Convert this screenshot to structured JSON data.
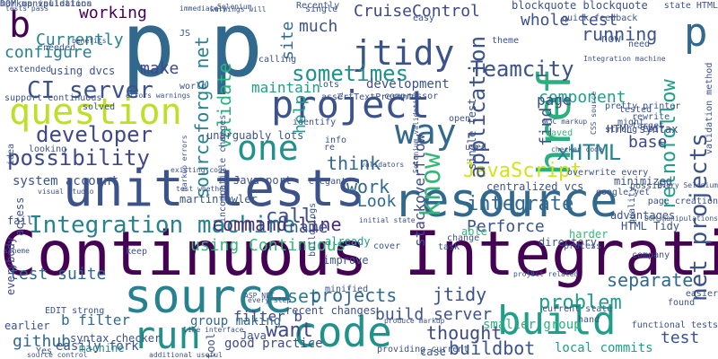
{
  "wordcloud": {
    "words": [
      {
        "text": "Continuous Integration",
        "color": "#440154"
      },
      {
        "text": "unit tests",
        "color": "#3b528b"
      },
      {
        "text": "p",
        "color": "#31688e"
      },
      {
        "text": "p",
        "color": "#31688e"
      },
      {
        "text": "resource",
        "color": "#31688e"
      },
      {
        "text": "source",
        "color": "#26828e"
      },
      {
        "text": "code",
        "color": "#21918c"
      },
      {
        "text": "project",
        "color": "#3b528b"
      },
      {
        "text": "way",
        "color": "#31688e"
      },
      {
        "text": "run",
        "color": "#21918c"
      },
      {
        "text": "question",
        "color": "#bddf26"
      },
      {
        "text": "build",
        "color": "#1f9e89"
      },
      {
        "text": "one",
        "color": "#21918c"
      },
      {
        "text": "href",
        "color": "#2ab07f"
      },
      {
        "text": "know",
        "color": "#35b779"
      },
      {
        "text": "jtidy",
        "color": "#3b528b"
      },
      {
        "text": "Integration machine",
        "color": "#26828e"
      },
      {
        "text": "CI server",
        "color": "#3b528b"
      },
      {
        "text": "sometimes",
        "color": "#21918c"
      },
      {
        "text": "Teamcity",
        "color": "#3b528b"
      },
      {
        "text": "developer",
        "color": "#3e4989"
      },
      {
        "text": "possibility",
        "color": "#3e4989"
      },
      {
        "text": "JavaScript",
        "color": "#d2e21b"
      },
      {
        "text": "xHTML",
        "color": "#26828e"
      },
      {
        "text": "application",
        "color": "#3b528b"
      },
      {
        "text": "net projects",
        "color": "#3b528b"
      },
      {
        "text": "relnofollow",
        "color": "#1f9e89"
      },
      {
        "text": "sourceforge net",
        "color": "#26828e"
      },
      {
        "text": "validate",
        "color": "#2ab07f"
      },
      {
        "text": "command line",
        "color": "#482878"
      },
      {
        "text": "think",
        "color": "#31688e"
      },
      {
        "text": "work",
        "color": "#31688e"
      },
      {
        "text": "want",
        "color": "#3e4989"
      },
      {
        "text": "thought",
        "color": "#3e4989"
      },
      {
        "text": "problem",
        "color": "#1f9e89"
      },
      {
        "text": "integrate",
        "color": "#31688e"
      },
      {
        "text": "call",
        "color": "#3b528b"
      },
      {
        "text": "set",
        "color": "#26828e"
      },
      {
        "text": "projects",
        "color": "#31688e"
      },
      {
        "text": "jtidy",
        "color": "#3b528b"
      },
      {
        "text": "build server",
        "color": "#3b528b"
      },
      {
        "text": "buildbot",
        "color": "#3b528b"
      },
      {
        "text": "separate",
        "color": "#31688e"
      },
      {
        "text": "test",
        "color": "#3b528b"
      },
      {
        "text": "make",
        "color": "#3e4989"
      },
      {
        "text": "configure",
        "color": "#26828e"
      },
      {
        "text": "Currently",
        "color": "#26828e"
      },
      {
        "text": "working",
        "color": "#440154"
      },
      {
        "text": "CruiseControl",
        "color": "#3e4989"
      },
      {
        "text": "much",
        "color": "#3b528b"
      },
      {
        "text": "site",
        "color": "#31688e"
      },
      {
        "text": "help",
        "color": "#1f9e89"
      },
      {
        "text": "maintain",
        "color": "#1f9e89"
      },
      {
        "text": "Look",
        "color": "#31688e"
      },
      {
        "text": "name",
        "color": "#3b528b"
      },
      {
        "text": "using Continuous",
        "color": "#35b779"
      },
      {
        "text": "Perforce",
        "color": "#3b528b"
      },
      {
        "text": "github",
        "color": "#31688e"
      },
      {
        "text": "test suite",
        "color": "#31688e"
      },
      {
        "text": "b filter",
        "color": "#31688e"
      },
      {
        "text": "filter b",
        "color": "#3e4989"
      },
      {
        "text": "running",
        "color": "#3b528b"
      },
      {
        "text": "component",
        "color": "#1f9e89"
      },
      {
        "text": "find",
        "color": "#3b528b"
      },
      {
        "text": "page",
        "color": "#3e4989"
      },
      {
        "text": "stackoverflow",
        "color": "#3e4989"
      },
      {
        "text": "base",
        "color": "#3e4989"
      },
      {
        "text": "whole test",
        "color": "#3b528b"
      },
      {
        "text": "blockquote blockquote",
        "color": "#3b528b"
      },
      {
        "text": "b",
        "color": "#440154"
      },
      {
        "text": "p",
        "color": "#31688e"
      },
      {
        "text": "system account",
        "color": "#3b528b"
      },
      {
        "text": "easily fork",
        "color": "#3b528b"
      },
      {
        "text": "good practice",
        "color": "#3e4989"
      },
      {
        "text": "local commits",
        "color": "#1f9e89"
      },
      {
        "text": "smaller group",
        "color": "#2ab07f"
      },
      {
        "text": "group making",
        "color": "#31688e"
      },
      {
        "text": "centralized vcs",
        "color": "#3b528b"
      },
      {
        "text": "fail",
        "color": "#3b528b"
      },
      {
        "text": "access",
        "color": "#3b528b"
      },
      {
        "text": "everybody",
        "color": "#3e4989"
      },
      {
        "text": "development",
        "color": "#3b528b"
      },
      {
        "text": "using dvcs",
        "color": "#3b528b"
      },
      {
        "text": "single test",
        "color": "#3b528b"
      },
      {
        "text": "now",
        "color": "#3b528b"
      },
      {
        "text": "HTML syntax",
        "color": "#3e4989"
      },
      {
        "text": "HTML Tidy",
        "color": "#3b528b"
      },
      {
        "text": "advantages",
        "color": "#3b528b"
      },
      {
        "text": "recent changes",
        "color": "#3b528b"
      },
      {
        "text": "minimized",
        "color": "#3b528b"
      },
      {
        "text": "unarguably lots",
        "color": "#3b528b"
      },
      {
        "text": "Java port",
        "color": "#3b528b"
      },
      {
        "text": "martinfowler",
        "color": "#3b528b"
      },
      {
        "text": "already",
        "color": "#1f9e89"
      },
      {
        "text": "improve",
        "color": "#3b528b"
      },
      {
        "text": "Java",
        "color": "#3b528b"
      },
      {
        "text": "syntax checker",
        "color": "#3b528b"
      },
      {
        "text": "machine",
        "color": "#21918c"
      },
      {
        "text": "tool",
        "color": "#3b528b"
      },
      {
        "text": "harder",
        "color": "#35b779"
      },
      {
        "text": "able",
        "color": "#35b779"
      },
      {
        "text": "directory",
        "color": "#3b528b"
      },
      {
        "text": "earlier",
        "color": "#3b528b"
      },
      {
        "text": "case",
        "color": "#3b528b"
      },
      {
        "text": "keep",
        "color": "#3b528b"
      },
      {
        "text": "found",
        "color": "#3b528b"
      },
      {
        "text": "easier",
        "color": "#3b528b"
      },
      {
        "text": "hand",
        "color": "#3b528b"
      },
      {
        "text": "Yes",
        "color": "#3b528b"
      },
      {
        "text": "needed",
        "color": "#3b528b"
      },
      {
        "text": "extended",
        "color": "#3b528b"
      },
      {
        "text": "support continuous",
        "color": "#3b528b"
      },
      {
        "text": "solved",
        "color": "#3b528b"
      },
      {
        "text": "JS",
        "color": "#3b528b"
      },
      {
        "text": "calling",
        "color": "#3b528b"
      },
      {
        "text": "lots",
        "color": "#3b528b"
      },
      {
        "text": "assertTextPresent",
        "color": "#3b528b"
      },
      {
        "text": "compressor",
        "color": "#3b528b"
      },
      {
        "text": "identify",
        "color": "#3b528b"
      },
      {
        "text": "pretty printer",
        "color": "#3b528b"
      },
      {
        "text": "rewrite",
        "color": "#3b528b"
      },
      {
        "text": "target",
        "color": "#3b528b"
      },
      {
        "text": "strong EDIT",
        "color": "#3b528b"
      },
      {
        "text": "tested",
        "color": "#3b528b"
      },
      {
        "text": "might",
        "color": "#3b528b"
      },
      {
        "text": "saved",
        "color": "#35b779"
      },
      {
        "text": "info",
        "color": "#3b528b"
      },
      {
        "text": "used",
        "color": "#3b528b"
      },
      {
        "text": "open",
        "color": "#3b528b"
      },
      {
        "text": "change",
        "color": "#3b528b"
      },
      {
        "text": "task",
        "color": "#3b528b"
      },
      {
        "text": "process",
        "color": "#3b528b"
      },
      {
        "text": "company",
        "color": "#3b528b"
      },
      {
        "text": "possible",
        "color": "#3b528b"
      },
      {
        "text": "quality",
        "color": "#3b528b"
      },
      {
        "text": "need",
        "color": "#3b528b"
      },
      {
        "text": "quick feedback",
        "color": "#3b528b"
      },
      {
        "text": "easy",
        "color": "#3b528b"
      },
      {
        "text": "single",
        "color": "#3b528b"
      },
      {
        "text": "Recently",
        "color": "#3b528b"
      },
      {
        "text": "theme",
        "color": "#3b528b"
      },
      {
        "text": "state HTML",
        "color": "#3b528b"
      },
      {
        "text": "validation method",
        "color": "#3b528b"
      },
      {
        "text": "incompatible changes",
        "color": "#3b528b"
      },
      {
        "text": "world",
        "color": "#3b528b"
      },
      {
        "text": "looking",
        "color": "#3b528b"
      },
      {
        "text": "idea",
        "color": "#3b528b"
      },
      {
        "text": "elegant",
        "color": "#3b528b"
      },
      {
        "text": "re",
        "color": "#3b528b"
      },
      {
        "text": "minified",
        "color": "#3b528b"
      },
      {
        "text": "EDIT strong",
        "color": "#3b528b"
      },
      {
        "text": "providing current",
        "color": "#3b528b"
      },
      {
        "text": "cover",
        "color": "#3b528b"
      },
      {
        "text": "current state",
        "color": "#3b528b"
      },
      {
        "text": "functional tests",
        "color": "#3b528b"
      },
      {
        "text": "build logs",
        "color": "#3b528b"
      },
      {
        "text": "overwrite every",
        "color": "#3b528b"
      },
      {
        "text": "benefits",
        "color": "#3b528b"
      },
      {
        "text": "immediately",
        "color": "#3b528b"
      },
      {
        "text": "errors warnings",
        "color": "#3b528b"
      },
      {
        "text": "warnings will",
        "color": "#3b528b"
      },
      {
        "text": "validators",
        "color": "#3b528b"
      },
      {
        "text": "Selenium validation",
        "color": "#3b528b"
      },
      {
        "text": "CSS source",
        "color": "#3b528b"
      },
      {
        "text": "every Selenium",
        "color": "#3b528b"
      },
      {
        "text": "DOM manipulations",
        "color": "#3b528b"
      },
      {
        "text": "visual studio",
        "color": "#3b528b"
      },
      {
        "text": "scheme",
        "color": "#3b528b"
      },
      {
        "text": "line interface",
        "color": "#3b528b"
      },
      {
        "text": "project related",
        "color": "#3b528b"
      },
      {
        "text": "tests pass",
        "color": "#3b528b"
      },
      {
        "text": "produce markup",
        "color": "#3b528b"
      },
      {
        "text": "additional useful",
        "color": "#3b528b"
      },
      {
        "text": "ASP NET",
        "color": "#3b528b"
      },
      {
        "text": "source control",
        "color": "#3b528b"
      },
      {
        "text": "every step",
        "color": "#3b528b"
      },
      {
        "text": "checker code",
        "color": "#3b528b"
      },
      {
        "text": "W3C markup",
        "color": "#3b528b"
      },
      {
        "text": "initial state",
        "color": "#3b528b"
      },
      {
        "text": "existing code",
        "color": "#3b528b"
      },
      {
        "text": "test whether",
        "color": "#3b528b"
      },
      {
        "text": "markup errors",
        "color": "#3b528b"
      },
      {
        "text": "google yet",
        "color": "#3b528b"
      },
      {
        "text": "page creation",
        "color": "#3b528b"
      },
      {
        "text": "fi",
        "color": "#3b528b"
      },
      {
        "text": "lu",
        "color": "#3b528b"
      },
      {
        "text": "Selenium",
        "color": "#3b528b"
      },
      {
        "text": "Integration machine",
        "color": "#3b528b"
      },
      {
        "text": "markup validation",
        "color": "#3b528b"
      },
      {
        "text": "DOM manipulations",
        "color": "#3b528b"
      }
    ]
  }
}
